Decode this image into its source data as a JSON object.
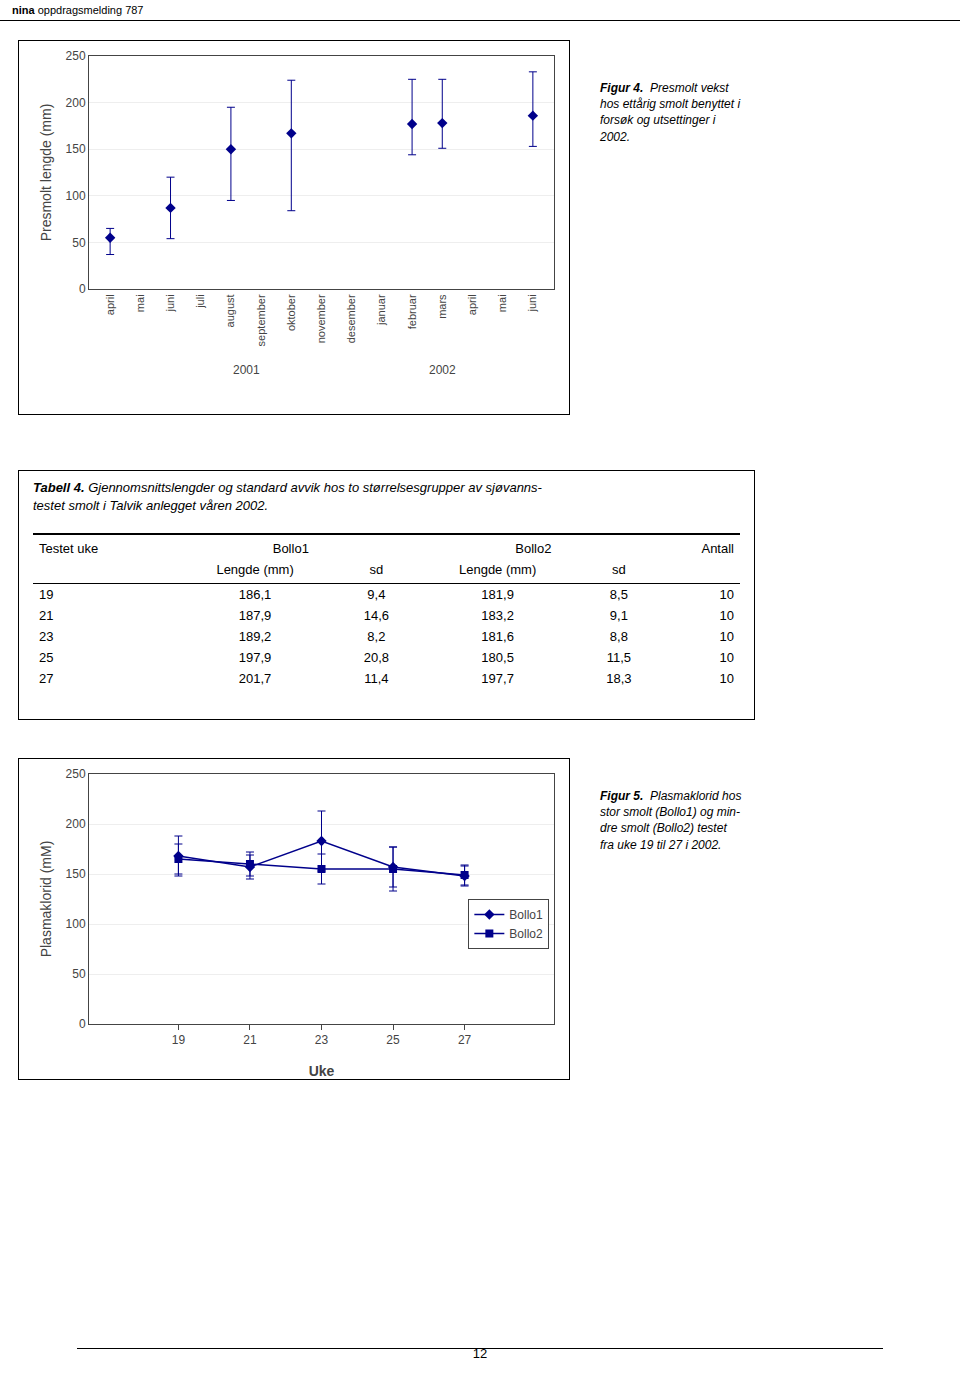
{
  "chart_data": [
    {
      "type": "scatter",
      "title": "Figur 4.  Presmolt vekst\nhos ettårig smolt benyttet i\nforsøk og utsettinger i\n2002.",
      "categories": [
        "april",
        "mai",
        "juni",
        "juli",
        "august",
        "september",
        "oktober",
        "november",
        "desember",
        "januar",
        "februar",
        "mars",
        "april",
        "mai",
        "juni"
      ],
      "values": [
        55,
        null,
        87,
        null,
        150,
        null,
        167,
        null,
        null,
        null,
        177,
        178,
        null,
        null,
        186
      ],
      "error_upper": [
        10,
        null,
        33,
        null,
        45,
        null,
        57,
        null,
        null,
        null,
        48,
        47,
        null,
        null,
        47
      ],
      "error_lower": [
        18,
        null,
        33,
        null,
        55,
        null,
        83,
        null,
        null,
        null,
        33,
        27,
        null,
        null,
        33
      ],
      "color": "#00008B",
      "marker": "diamond",
      "ylabel": "Presmolt lengde (mm)",
      "ylim": [
        0,
        250
      ],
      "yticks": [
        0,
        50,
        100,
        150,
        200,
        250
      ],
      "grid": true,
      "annotations": [
        {
          "text": "2001",
          "x": 4.5
        },
        {
          "text": "2002",
          "x": 11.0
        }
      ]
    },
    {
      "type": "line",
      "title": "Figur 5.  Plasmaklorid hos\nstor smolt (Bollo1) og min-\ndre smolt (Bollo2) testet\nfra uke 19 til 27 i 2002.",
      "x": [
        19,
        21,
        23,
        25,
        27
      ],
      "series": [
        {
          "name": "Bollo1",
          "color": "#00008B",
          "marker": "diamond",
          "values": [
            168,
            157,
            183,
            157,
            148
          ],
          "error": [
            20,
            12,
            30,
            20,
            10
          ]
        },
        {
          "name": "Bollo2",
          "color": "#00008B",
          "marker": "square",
          "values": [
            165,
            160,
            155,
            155,
            149
          ],
          "error": [
            15,
            12,
            15,
            22,
            10
          ]
        }
      ],
      "xlabel": "Uke",
      "ylabel": "Plasmaklorid (mM)",
      "xlim": [
        16.5,
        29.5
      ],
      "xticks": [
        19,
        21,
        23,
        25,
        27
      ],
      "ylim": [
        0,
        250
      ],
      "yticks": [
        0,
        50,
        100,
        150,
        200,
        250
      ],
      "grid": true,
      "legend": "right"
    }
  ],
  "header": [
    "nina",
    "oppdragsmelding 787"
  ],
  "table": {
    "title": "Tabell 4. Gjennomsnittslengder og standard avvik hos to størrelsesgrupper av sjøvanns-\ntestet smolt i Talvik anlegget våren 2002.",
    "columns": [
      "Testet uke",
      "Bollo1",
      "Bollo2",
      "Antall"
    ],
    "subcolumns": [
      "Lengde (mm)",
      "sd"
    ],
    "rows": [
      [
        19,
        "186,1",
        "9,4",
        "181,9",
        "8,5",
        10
      ],
      [
        21,
        "187,9",
        "14,6",
        "183,2",
        "9,1",
        10
      ],
      [
        23,
        "189,2",
        "8,2",
        "181,6",
        "8,8",
        10
      ],
      [
        25,
        "197,9",
        "20,8",
        "180,5",
        "11,5",
        10
      ],
      [
        27,
        "201,7",
        "11,4",
        "197,7",
        "18,3",
        10
      ]
    ]
  },
  "page_number": "12"
}
